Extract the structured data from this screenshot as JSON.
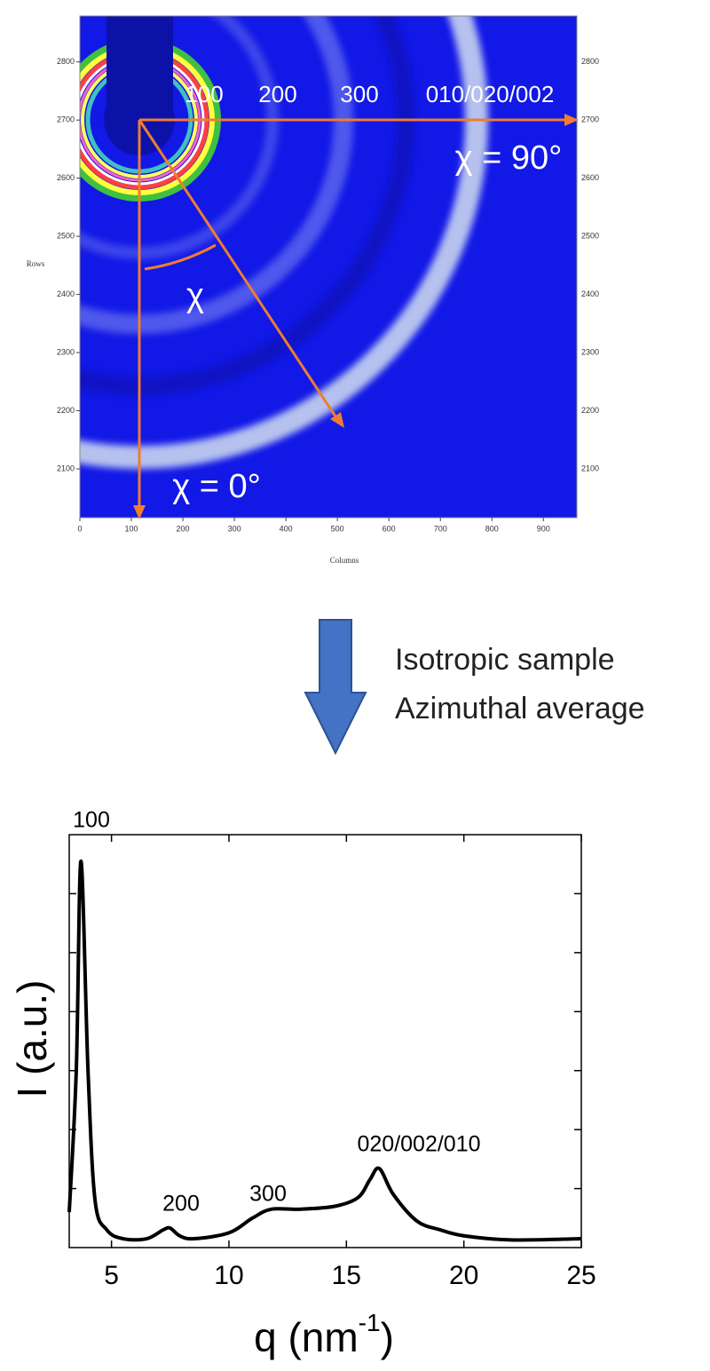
{
  "chart_data": [
    {
      "type": "image",
      "color": "#1218e6",
      "x_label": "Columns",
      "y_label": "Rows",
      "xlim": [
        0,
        965
      ],
      "xticks": [
        0,
        100,
        200,
        300,
        400,
        500,
        600,
        700,
        800,
        900
      ],
      "ylim": [
        2016,
        2879
      ],
      "yticks": [
        2100,
        2200,
        2300,
        2400,
        2500,
        2600,
        2700,
        2800
      ],
      "annotations": [
        "100",
        "200",
        "300",
        "010/020/002",
        "χ = 90°",
        "χ",
        "χ = 0°"
      ]
    },
    {
      "type": "line",
      "color": "#000000",
      "y_label": "I (a.u.)",
      "x_label": [
        "q (nm",
        "-1",
        ")"
      ],
      "xlim": [
        3.2,
        25
      ],
      "xticks": [
        5,
        10,
        15,
        20,
        25
      ],
      "ylim": [
        0,
        7
      ],
      "yticks": [
        1,
        2,
        3,
        4,
        5,
        6
      ],
      "x": [
        3.2,
        3.5,
        3.7,
        4.0,
        4.3,
        4.8,
        5.5,
        6.5,
        7.2,
        7.5,
        7.9,
        8.5,
        10,
        11,
        11.8,
        13,
        14.5,
        15.5,
        16,
        16.4,
        17,
        18,
        19,
        20,
        22,
        25
      ],
      "values": [
        0.6,
        3,
        6.55,
        3,
        0.8,
        0.3,
        0.15,
        0.15,
        0.3,
        0.33,
        0.2,
        0.15,
        0.25,
        0.5,
        0.65,
        0.65,
        0.7,
        0.85,
        1.15,
        1.34,
        0.9,
        0.45,
        0.3,
        0.2,
        0.13,
        0.15
      ],
      "annotations": [
        "100",
        "200",
        "300",
        "020/002/010"
      ]
    }
  ],
  "caption": [
    "Isotropic sample",
    "Azimuthal average"
  ]
}
